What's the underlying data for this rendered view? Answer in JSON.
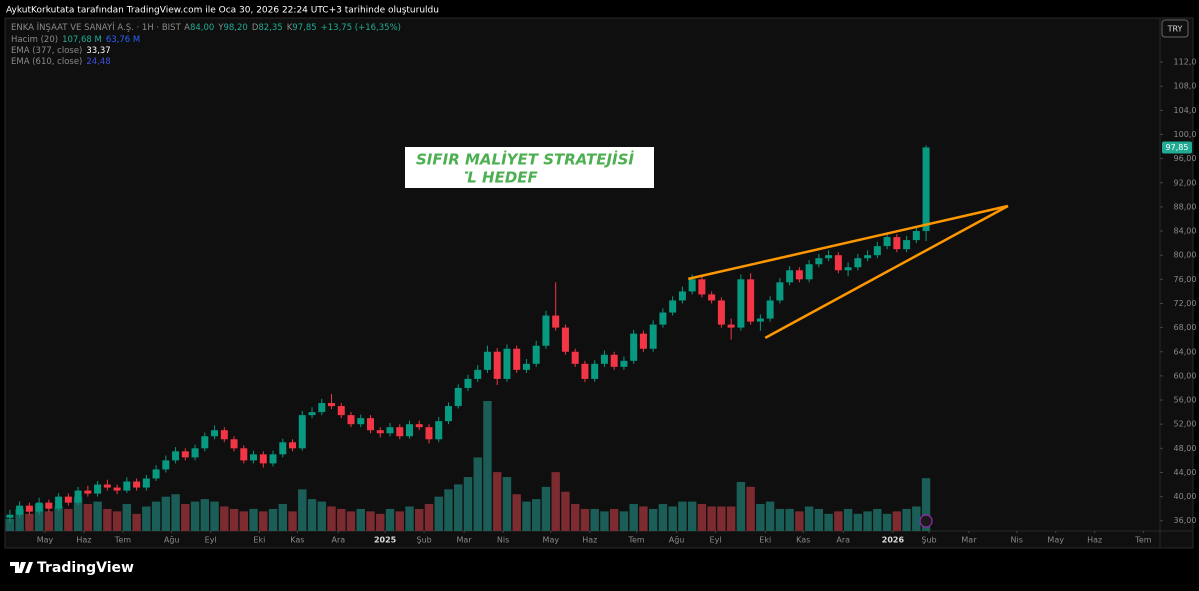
{
  "header": {
    "attribution": "AykutKorkutata tarafından TradingView.com ile Oca 30, 2026 22:24 UTC+3 tarihinde oluşturuldu",
    "currency": "TRY"
  },
  "footer": {
    "brand": "TradingView"
  },
  "chart_data": {
    "type": "candlestick",
    "legend": {
      "symbol": "ENKA İNŞAAT VE SANAYİ A.Ş. · 1H · BIST",
      "ohlc": [
        [
          "A",
          "84,00"
        ],
        [
          "Y",
          "98,20"
        ],
        [
          "D",
          "82,35"
        ],
        [
          "K",
          "97,85"
        ]
      ],
      "change": "+13,75 (+16,35%)",
      "volume": [
        "Hacim (20)",
        "107,68 M",
        "63,76 M"
      ],
      "ema1": [
        "EMA (377, close)",
        "33,37"
      ],
      "ema2": [
        "EMA (610, close)",
        "24,48"
      ]
    },
    "colors": {
      "up": "#089981",
      "down": "#f23645",
      "volume_up": "#1b5e57",
      "volume_down": "#7c2b30"
    },
    "xlim": [
      -0.5,
      118
    ],
    "ylim": [
      34.3,
      119.3
    ],
    "xticks": [
      {
        "value": 3.6,
        "label": "May"
      },
      {
        "value": 7.6,
        "label": "Haz"
      },
      {
        "value": 11.6,
        "label": "Tem"
      },
      {
        "value": 16.6,
        "label": "Ağu"
      },
      {
        "value": 20.6,
        "label": "Eyl"
      },
      {
        "value": 25.6,
        "label": "Eki"
      },
      {
        "value": 29.5,
        "label": "Kas"
      },
      {
        "value": 33.7,
        "label": "Ara"
      },
      {
        "value": 38.5,
        "label": "2025"
      },
      {
        "value": 42.5,
        "label": "Şub"
      },
      {
        "value": 46.6,
        "label": "Mar"
      },
      {
        "value": 50.6,
        "label": "Nis"
      },
      {
        "value": 55.5,
        "label": "May"
      },
      {
        "value": 59.5,
        "label": "Haz"
      },
      {
        "value": 64.3,
        "label": "Tem"
      },
      {
        "value": 68.4,
        "label": "Ağu"
      },
      {
        "value": 72.4,
        "label": "Eyl"
      },
      {
        "value": 77.5,
        "label": "Eki"
      },
      {
        "value": 81.4,
        "label": "Kas"
      },
      {
        "value": 85.5,
        "label": "Ara"
      },
      {
        "value": 90.6,
        "label": "2026"
      },
      {
        "value": 94.3,
        "label": "Şub"
      },
      {
        "value": 98.4,
        "label": "Mar"
      },
      {
        "value": 103.3,
        "label": "Nis"
      },
      {
        "value": 107.3,
        "label": "May"
      },
      {
        "value": 111.3,
        "label": "Haz"
      },
      {
        "value": 116.3,
        "label": "Tem"
      }
    ],
    "yticks": [
      {
        "value": 36,
        "label": "36,00"
      },
      {
        "value": 40,
        "label": "40,00"
      },
      {
        "value": 44,
        "label": "44,00"
      },
      {
        "value": 48,
        "label": "48,00"
      },
      {
        "value": 52,
        "label": "52,00"
      },
      {
        "value": 56,
        "label": "56,00"
      },
      {
        "value": 60,
        "label": "60,00"
      },
      {
        "value": 64,
        "label": "64,00"
      },
      {
        "value": 68,
        "label": "68,00"
      },
      {
        "value": 72,
        "label": "72,00"
      },
      {
        "value": 76,
        "label": "76,00"
      },
      {
        "value": 80,
        "label": "80,00"
      },
      {
        "value": 84,
        "label": "84,00"
      },
      {
        "value": 88,
        "label": "88,00"
      },
      {
        "value": 92,
        "label": "92,00"
      },
      {
        "value": 96,
        "label": "96,00"
      },
      {
        "value": 100,
        "label": "100,0"
      },
      {
        "value": 104,
        "label": "104,0"
      },
      {
        "value": 108,
        "label": "108,0"
      },
      {
        "value": 112,
        "label": "112,0"
      }
    ],
    "last_price_label": "97,85",
    "candles": [
      [
        36.5,
        37.8,
        35.8,
        37.0
      ],
      [
        37.0,
        39.2,
        36.5,
        38.5
      ],
      [
        38.5,
        39.0,
        37.0,
        37.5
      ],
      [
        37.5,
        39.8,
        37.0,
        39.0
      ],
      [
        39.0,
        39.5,
        37.4,
        38.0
      ],
      [
        38.0,
        40.6,
        37.6,
        40.0
      ],
      [
        40.0,
        40.5,
        38.5,
        39.0
      ],
      [
        39.0,
        41.6,
        38.6,
        41.0
      ],
      [
        41.0,
        41.8,
        40.0,
        40.5
      ],
      [
        40.5,
        42.6,
        40.0,
        42.0
      ],
      [
        42.0,
        42.8,
        41.0,
        41.5
      ],
      [
        41.5,
        42.0,
        40.4,
        41.0
      ],
      [
        41.0,
        43.2,
        40.6,
        42.5
      ],
      [
        42.5,
        43.0,
        41.0,
        41.5
      ],
      [
        41.5,
        43.6,
        41.0,
        43.0
      ],
      [
        43.0,
        45.2,
        42.6,
        44.5
      ],
      [
        44.5,
        46.8,
        44.0,
        46.0
      ],
      [
        46.0,
        48.2,
        45.5,
        47.5
      ],
      [
        47.5,
        48.0,
        46.0,
        46.5
      ],
      [
        46.5,
        48.6,
        46.0,
        48.0
      ],
      [
        48.0,
        50.6,
        47.5,
        50.0
      ],
      [
        50.0,
        51.8,
        49.5,
        51.0
      ],
      [
        51.0,
        51.5,
        49.0,
        49.5
      ],
      [
        49.5,
        50.0,
        47.5,
        48.0
      ],
      [
        48.0,
        48.5,
        45.5,
        46.0
      ],
      [
        46.0,
        47.6,
        45.5,
        47.0
      ],
      [
        47.0,
        47.5,
        44.8,
        45.5
      ],
      [
        45.5,
        47.6,
        45.0,
        47.0
      ],
      [
        47.0,
        49.6,
        46.5,
        49.0
      ],
      [
        49.0,
        49.5,
        47.5,
        48.0
      ],
      [
        48.0,
        54.2,
        47.6,
        53.5
      ],
      [
        53.5,
        54.8,
        53.0,
        54.0
      ],
      [
        54.0,
        56.2,
        53.5,
        55.5
      ],
      [
        55.5,
        57.0,
        54.5,
        55.0
      ],
      [
        55.0,
        55.5,
        53.0,
        53.5
      ],
      [
        53.5,
        54.0,
        51.5,
        52.0
      ],
      [
        52.0,
        53.6,
        51.5,
        53.0
      ],
      [
        53.0,
        53.5,
        50.5,
        51.0
      ],
      [
        51.0,
        51.5,
        49.8,
        50.5
      ],
      [
        50.5,
        52.2,
        50.0,
        51.5
      ],
      [
        51.5,
        52.0,
        49.5,
        50.0
      ],
      [
        50.0,
        52.6,
        49.6,
        52.0
      ],
      [
        52.0,
        52.6,
        51.0,
        51.5
      ],
      [
        51.5,
        52.0,
        48.8,
        49.5
      ],
      [
        49.5,
        53.2,
        49.0,
        52.5
      ],
      [
        52.5,
        55.6,
        52.0,
        55.0
      ],
      [
        55.0,
        58.6,
        54.6,
        58.0
      ],
      [
        58.0,
        60.2,
        57.5,
        59.5
      ],
      [
        59.5,
        61.8,
        59.0,
        61.0
      ],
      [
        61.0,
        65.0,
        60.5,
        64.0
      ],
      [
        64.0,
        64.6,
        58.5,
        59.5
      ],
      [
        59.5,
        65.2,
        59.0,
        64.5
      ],
      [
        64.5,
        65.0,
        60.5,
        61.0
      ],
      [
        61.0,
        62.8,
        60.5,
        62.0
      ],
      [
        62.0,
        65.8,
        61.5,
        65.0
      ],
      [
        65.0,
        70.8,
        64.5,
        70.0
      ],
      [
        70.0,
        75.5,
        67.5,
        68.0
      ],
      [
        68.0,
        68.5,
        63.5,
        64.0
      ],
      [
        64.0,
        64.5,
        61.5,
        62.0
      ],
      [
        62.0,
        62.5,
        59.0,
        59.5
      ],
      [
        59.5,
        62.6,
        59.0,
        62.0
      ],
      [
        62.0,
        64.2,
        61.5,
        63.5
      ],
      [
        63.5,
        64.0,
        61.0,
        61.5
      ],
      [
        61.5,
        63.2,
        61.0,
        62.5
      ],
      [
        62.5,
        67.6,
        62.0,
        67.0
      ],
      [
        67.0,
        67.5,
        64.0,
        64.5
      ],
      [
        64.5,
        69.2,
        64.0,
        68.5
      ],
      [
        68.5,
        71.2,
        68.0,
        70.5
      ],
      [
        70.5,
        73.2,
        70.0,
        72.5
      ],
      [
        72.5,
        74.8,
        72.0,
        74.0
      ],
      [
        74.0,
        76.8,
        73.5,
        76.0
      ],
      [
        76.0,
        76.5,
        73.0,
        73.5
      ],
      [
        73.5,
        74.0,
        72.0,
        72.5
      ],
      [
        72.5,
        73.0,
        68.0,
        68.5
      ],
      [
        68.5,
        69.5,
        66.0,
        68.0
      ],
      [
        68.0,
        76.8,
        67.5,
        76.0
      ],
      [
        76.0,
        77.0,
        68.5,
        69.0
      ],
      [
        69.0,
        70.2,
        67.5,
        69.5
      ],
      [
        69.5,
        73.2,
        69.0,
        72.5
      ],
      [
        72.5,
        76.2,
        72.0,
        75.5
      ],
      [
        75.5,
        78.2,
        75.0,
        77.5
      ],
      [
        77.5,
        78.0,
        75.5,
        76.0
      ],
      [
        76.0,
        79.2,
        75.5,
        78.5
      ],
      [
        78.5,
        80.2,
        78.0,
        79.5
      ],
      [
        79.5,
        80.8,
        79.0,
        80.0
      ],
      [
        80.0,
        80.5,
        77.0,
        77.5
      ],
      [
        77.5,
        78.8,
        76.5,
        78.0
      ],
      [
        78.0,
        80.2,
        77.5,
        79.5
      ],
      [
        79.5,
        80.8,
        79.0,
        80.0
      ],
      [
        80.0,
        82.2,
        79.5,
        81.5
      ],
      [
        81.5,
        83.8,
        81.0,
        83.0
      ],
      [
        83.0,
        83.5,
        80.5,
        81.0
      ],
      [
        81.0,
        83.2,
        80.5,
        82.5
      ],
      [
        82.5,
        84.8,
        82.0,
        84.0
      ],
      [
        84.0,
        98.2,
        82.35,
        97.85
      ]
    ],
    "volumes": [
      25,
      45,
      35,
      55,
      40,
      50,
      45,
      70,
      55,
      60,
      45,
      40,
      55,
      35,
      50,
      60,
      70,
      75,
      55,
      60,
      65,
      60,
      50,
      45,
      40,
      45,
      40,
      45,
      55,
      40,
      85,
      65,
      60,
      50,
      45,
      40,
      45,
      40,
      35,
      45,
      40,
      50,
      45,
      55,
      70,
      85,
      95,
      110,
      150,
      265,
      120,
      110,
      75,
      60,
      65,
      90,
      120,
      80,
      55,
      45,
      45,
      40,
      45,
      40,
      55,
      50,
      45,
      55,
      50,
      60,
      60,
      55,
      50,
      50,
      50,
      100,
      90,
      55,
      60,
      45,
      45,
      40,
      50,
      45,
      35,
      40,
      45,
      35,
      40,
      45,
      35,
      40,
      45,
      50,
      107.68
    ],
    "drawings": [
      {
        "color": "#ff9800",
        "x": [
          69.6,
          102.4
        ],
        "y": [
          76.07,
          88.15
        ]
      },
      {
        "color": "#ff9800",
        "x": [
          77.5,
          102.4
        ],
        "y": [
          66.3,
          88.15
        ]
      }
    ],
    "annotation": {
      "lines": [
        "SIFIR MALİYET STRATEJİSİ",
        "TL HEDEF"
      ],
      "color": "#4caf50"
    }
  }
}
